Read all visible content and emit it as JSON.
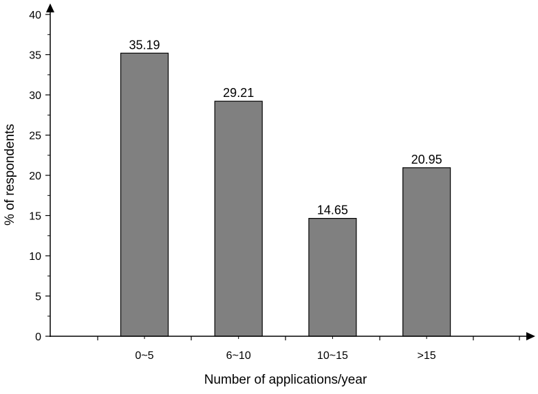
{
  "chart_data": {
    "type": "bar",
    "categories": [
      "0~5",
      "6~10",
      "10~15",
      ">15"
    ],
    "values": [
      35.19,
      29.21,
      14.65,
      20.95
    ],
    "value_labels": [
      "35.19",
      "29.21",
      "14.65",
      "20.95"
    ],
    "title": "",
    "xlabel": "Number of applications/year",
    "ylabel": "% of respondents",
    "ylim": [
      0,
      40
    ],
    "y_ticks": [
      "0",
      "5",
      "10",
      "15",
      "20",
      "25",
      "30",
      "35",
      "40"
    ],
    "grid": false,
    "bar_color": "#808080",
    "bar_edge_color": "#000000"
  }
}
